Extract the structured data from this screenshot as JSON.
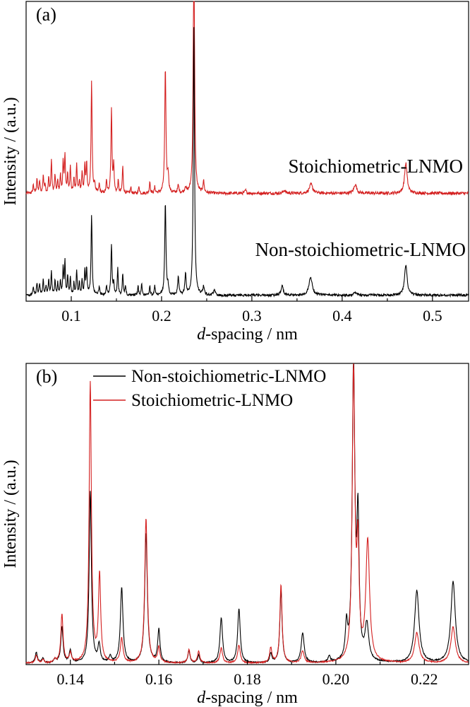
{
  "chart_data": [
    {
      "panel_label": "(a)",
      "type": "line",
      "xlabel_italic": "d",
      "xlabel_rest": "-spacing / nm",
      "ylabel": "Intensity / (a.u.)",
      "xlim": [
        0.05,
        0.54
      ],
      "ylim": [
        0,
        10
      ],
      "x_ticks": [
        0.1,
        0.2,
        0.3,
        0.4,
        0.5
      ],
      "x_tick_labels": [
        "0.1",
        "0.2",
        "0.3",
        "0.4",
        "0.5"
      ],
      "grid": false,
      "series": [
        {
          "name": "Stoichiometric-LNMO",
          "color": "#d42020",
          "baseline": 3.6,
          "noise": 0.05,
          "peaks": [
            [
              0.058,
              0.3,
              0.0006
            ],
            [
              0.062,
              0.5,
              0.0006
            ],
            [
              0.065,
              0.4,
              0.0006
            ],
            [
              0.069,
              0.6,
              0.0006
            ],
            [
              0.071,
              0.3,
              0.0006
            ],
            [
              0.075,
              0.5,
              0.0006
            ],
            [
              0.078,
              1.1,
              0.0006
            ],
            [
              0.082,
              0.6,
              0.0006
            ],
            [
              0.085,
              0.4,
              0.0006
            ],
            [
              0.088,
              0.6,
              0.0006
            ],
            [
              0.091,
              1.0,
              0.0006
            ],
            [
              0.093,
              1.3,
              0.0006
            ],
            [
              0.096,
              0.6,
              0.0006
            ],
            [
              0.099,
              0.9,
              0.0006
            ],
            [
              0.103,
              0.5,
              0.0006
            ],
            [
              0.106,
              1.0,
              0.0006
            ],
            [
              0.109,
              0.4,
              0.0006
            ],
            [
              0.112,
              0.7,
              0.0006
            ],
            [
              0.115,
              0.9,
              0.0006
            ],
            [
              0.117,
              1.0,
              0.0006
            ],
            [
              0.1225,
              3.7,
              0.0007
            ],
            [
              0.126,
              0.3,
              0.0006
            ],
            [
              0.131,
              0.3,
              0.0006
            ],
            [
              0.139,
              0.4,
              0.0006
            ],
            [
              0.1445,
              2.8,
              0.0007
            ],
            [
              0.147,
              0.9,
              0.0006
            ],
            [
              0.152,
              0.4,
              0.0006
            ],
            [
              0.157,
              0.9,
              0.0006
            ],
            [
              0.166,
              0.2,
              0.0006
            ],
            [
              0.175,
              0.25,
              0.0006
            ],
            [
              0.187,
              0.4,
              0.0006
            ],
            [
              0.1925,
              0.2,
              0.0006
            ],
            [
              0.2042,
              4.2,
              0.0008
            ],
            [
              0.2072,
              0.6,
              0.0008
            ],
            [
              0.2185,
              0.25,
              0.0008
            ],
            [
              0.2265,
              0.2,
              0.0008
            ],
            [
              0.2358,
              9.1,
              0.0008
            ],
            [
              0.2465,
              0.4,
              0.0008
            ],
            [
              0.293,
              0.1,
              0.001
            ],
            [
              0.336,
              0.1,
              0.0015
            ],
            [
              0.3655,
              0.3,
              0.0022
            ],
            [
              0.4145,
              0.3,
              0.0018
            ],
            [
              0.4705,
              1.0,
              0.0017
            ]
          ]
        },
        {
          "name": "Non-stoichiometric-LNMO",
          "color": "#000000",
          "baseline": 0.2,
          "noise": 0.04,
          "peaks": [
            [
              0.058,
              0.3,
              0.0006
            ],
            [
              0.062,
              0.4,
              0.0006
            ],
            [
              0.065,
              0.4,
              0.0006
            ],
            [
              0.069,
              0.5,
              0.0006
            ],
            [
              0.072,
              0.3,
              0.0006
            ],
            [
              0.075,
              0.5,
              0.0006
            ],
            [
              0.078,
              0.8,
              0.0006
            ],
            [
              0.082,
              0.5,
              0.0006
            ],
            [
              0.085,
              0.4,
              0.0006
            ],
            [
              0.088,
              0.5,
              0.0006
            ],
            [
              0.091,
              0.9,
              0.0006
            ],
            [
              0.093,
              1.1,
              0.0006
            ],
            [
              0.096,
              0.6,
              0.0006
            ],
            [
              0.099,
              0.6,
              0.0006
            ],
            [
              0.103,
              0.4,
              0.0006
            ],
            [
              0.106,
              0.8,
              0.0006
            ],
            [
              0.109,
              0.4,
              0.0006
            ],
            [
              0.112,
              0.5,
              0.0006
            ],
            [
              0.115,
              0.8,
              0.0006
            ],
            [
              0.117,
              0.9,
              0.0006
            ],
            [
              0.1225,
              2.7,
              0.0007
            ],
            [
              0.131,
              0.3,
              0.0006
            ],
            [
              0.139,
              0.3,
              0.0006
            ],
            [
              0.1445,
              1.7,
              0.0007
            ],
            [
              0.147,
              0.4,
              0.0006
            ],
            [
              0.1515,
              0.9,
              0.0006
            ],
            [
              0.157,
              0.7,
              0.0006
            ],
            [
              0.16,
              0.3,
              0.0006
            ],
            [
              0.174,
              0.3,
              0.0006
            ],
            [
              0.178,
              0.4,
              0.0006
            ],
            [
              0.187,
              0.3,
              0.0006
            ],
            [
              0.1925,
              0.3,
              0.0006
            ],
            [
              0.2042,
              3.1,
              0.0008
            ],
            [
              0.207,
              0.3,
              0.0008
            ],
            [
              0.2185,
              0.6,
              0.0008
            ],
            [
              0.2265,
              0.7,
              0.0008
            ],
            [
              0.2358,
              9.0,
              0.0008
            ],
            [
              0.2465,
              0.3,
              0.0008
            ],
            [
              0.2585,
              0.2,
              0.001
            ],
            [
              0.3335,
              0.3,
              0.0015
            ],
            [
              0.365,
              0.6,
              0.0022
            ],
            [
              0.4145,
              0.1,
              0.0018
            ],
            [
              0.4705,
              1.0,
              0.0017
            ]
          ]
        }
      ],
      "annotations": [
        "Stoichiometric-LNMO",
        "Non-stoichiometric-LNMO"
      ]
    },
    {
      "panel_label": "(b)",
      "type": "line",
      "xlabel_italic": "d",
      "xlabel_rest": "-spacing / nm",
      "ylabel": "Intensity / (a.u.)",
      "xlim": [
        0.13,
        0.23
      ],
      "ylim": [
        0,
        10
      ],
      "x_ticks": [
        0.14,
        0.16,
        0.18,
        0.2,
        0.22
      ],
      "x_tick_labels": [
        "0.14",
        "0.16",
        "0.18",
        "0.20",
        "0.22"
      ],
      "grid": false,
      "legend_position": "top-left",
      "series": [
        {
          "name": "Non-stoichiometric-LNMO",
          "color": "#000000",
          "baseline": 0.05,
          "noise": 0.02,
          "peaks": [
            [
              0.1323,
              0.35,
              0.0003
            ],
            [
              0.1338,
              0.15,
              0.0003
            ],
            [
              0.1365,
              0.12,
              0.0003
            ],
            [
              0.1381,
              1.2,
              0.0003
            ],
            [
              0.14,
              0.4,
              0.0003
            ],
            [
              0.1445,
              5.7,
              0.0003
            ],
            [
              0.1465,
              0.6,
              0.0003
            ],
            [
              0.149,
              0.2,
              0.0003
            ],
            [
              0.1516,
              2.5,
              0.00035
            ],
            [
              0.1571,
              4.3,
              0.00035
            ],
            [
              0.16,
              1.1,
              0.0003
            ],
            [
              0.1668,
              0.4,
              0.0003
            ],
            [
              0.169,
              0.25,
              0.0003
            ],
            [
              0.1741,
              1.5,
              0.00035
            ],
            [
              0.1781,
              1.8,
              0.00035
            ],
            [
              0.1853,
              0.3,
              0.0003
            ],
            [
              0.1876,
              2.4,
              0.0003
            ],
            [
              0.1925,
              1.0,
              0.0004
            ],
            [
              0.1985,
              0.2,
              0.0003
            ],
            [
              0.2024,
              1.1,
              0.0003
            ],
            [
              0.204,
              9.8,
              0.00035
            ],
            [
              0.205,
              4.5,
              0.0003
            ],
            [
              0.207,
              1.2,
              0.0005
            ],
            [
              0.2183,
              2.4,
              0.0006
            ],
            [
              0.2265,
              2.7,
              0.0006
            ]
          ]
        },
        {
          "name": "Stoichiometric-LNMO",
          "color": "#d42020",
          "baseline": 0.05,
          "noise": 0.02,
          "peaks": [
            [
              0.1323,
              0.25,
              0.0003
            ],
            [
              0.1338,
              0.12,
              0.0003
            ],
            [
              0.1365,
              0.1,
              0.0003
            ],
            [
              0.1381,
              1.6,
              0.0003
            ],
            [
              0.14,
              0.3,
              0.0003
            ],
            [
              0.1445,
              9.3,
              0.0003
            ],
            [
              0.1466,
              2.9,
              0.0003
            ],
            [
              0.1516,
              0.8,
              0.00035
            ],
            [
              0.1571,
              4.8,
              0.00035
            ],
            [
              0.16,
              0.5,
              0.0003
            ],
            [
              0.1668,
              0.45,
              0.0003
            ],
            [
              0.169,
              0.4,
              0.0003
            ],
            [
              0.1741,
              0.5,
              0.00035
            ],
            [
              0.1781,
              0.6,
              0.00035
            ],
            [
              0.1853,
              0.5,
              0.0003
            ],
            [
              0.1876,
              2.6,
              0.0003
            ],
            [
              0.1925,
              0.4,
              0.0004
            ],
            [
              0.204,
              9.7,
              0.00035
            ],
            [
              0.205,
              3.5,
              0.0003
            ],
            [
              0.2072,
              4.0,
              0.0005
            ],
            [
              0.2183,
              1.0,
              0.0006
            ],
            [
              0.2265,
              1.2,
              0.0006
            ]
          ]
        }
      ]
    }
  ]
}
